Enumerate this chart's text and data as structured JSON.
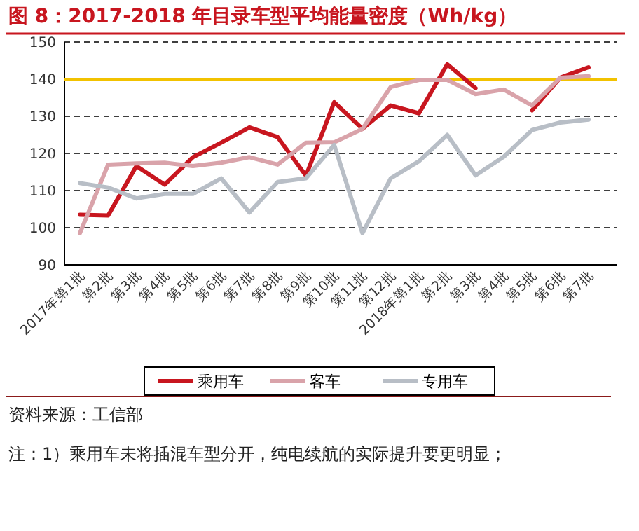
{
  "chart_data": {
    "type": "line",
    "title": "图 8：2017-2018 年目录车型平均能量密度（Wh/kg）",
    "categories": [
      "2017年第1批",
      "第2批",
      "第3批",
      "第4批",
      "第5批",
      "第6批",
      "第7批",
      "第8批",
      "第9批",
      "第10批",
      "第11批",
      "第12批",
      "2018年第1批",
      "第2批",
      "第3批",
      "第4批",
      "第5批",
      "第6批",
      "第7批"
    ],
    "series": [
      {
        "name": "乘用车",
        "color": "#c8161f",
        "values": [
          103.5,
          103.3,
          116.6,
          111.6,
          119,
          122.9,
          127,
          124.4,
          114,
          133.8,
          126.6,
          132.9,
          130.8,
          144,
          137.6,
          null,
          131.6,
          140.4,
          143.2
        ]
      },
      {
        "name": "客车",
        "color": "#d9a3aa",
        "values": [
          98.5,
          117,
          117.3,
          117.5,
          116.6,
          117.5,
          119,
          117,
          122.9,
          123,
          126.6,
          137.9,
          139.8,
          139.8,
          136,
          137.2,
          132.9,
          140.4,
          140.8
        ]
      },
      {
        "name": "专用车",
        "color": "#b8bec6",
        "values": [
          112,
          110.8,
          107.9,
          109.1,
          109.1,
          113.3,
          104.1,
          112.3,
          113.3,
          122.3,
          98.5,
          113.3,
          117.9,
          125,
          114.1,
          119.1,
          126.3,
          128.3,
          129.1
        ]
      }
    ],
    "ylim": [
      90,
      150
    ],
    "yticks": [
      90,
      100,
      110,
      120,
      130,
      140,
      150
    ],
    "grid": "y",
    "legend": "bottom",
    "line_style": "solid",
    "marker": "none",
    "ref_lines": [
      {
        "axis": "y",
        "value": 140,
        "color": "#f2c200"
      }
    ],
    "annotations": [
      "资料来源：工信部",
      "注：1）乘用车未将插混车型分开，纯电续航的实际提升要更明显；"
    ]
  }
}
